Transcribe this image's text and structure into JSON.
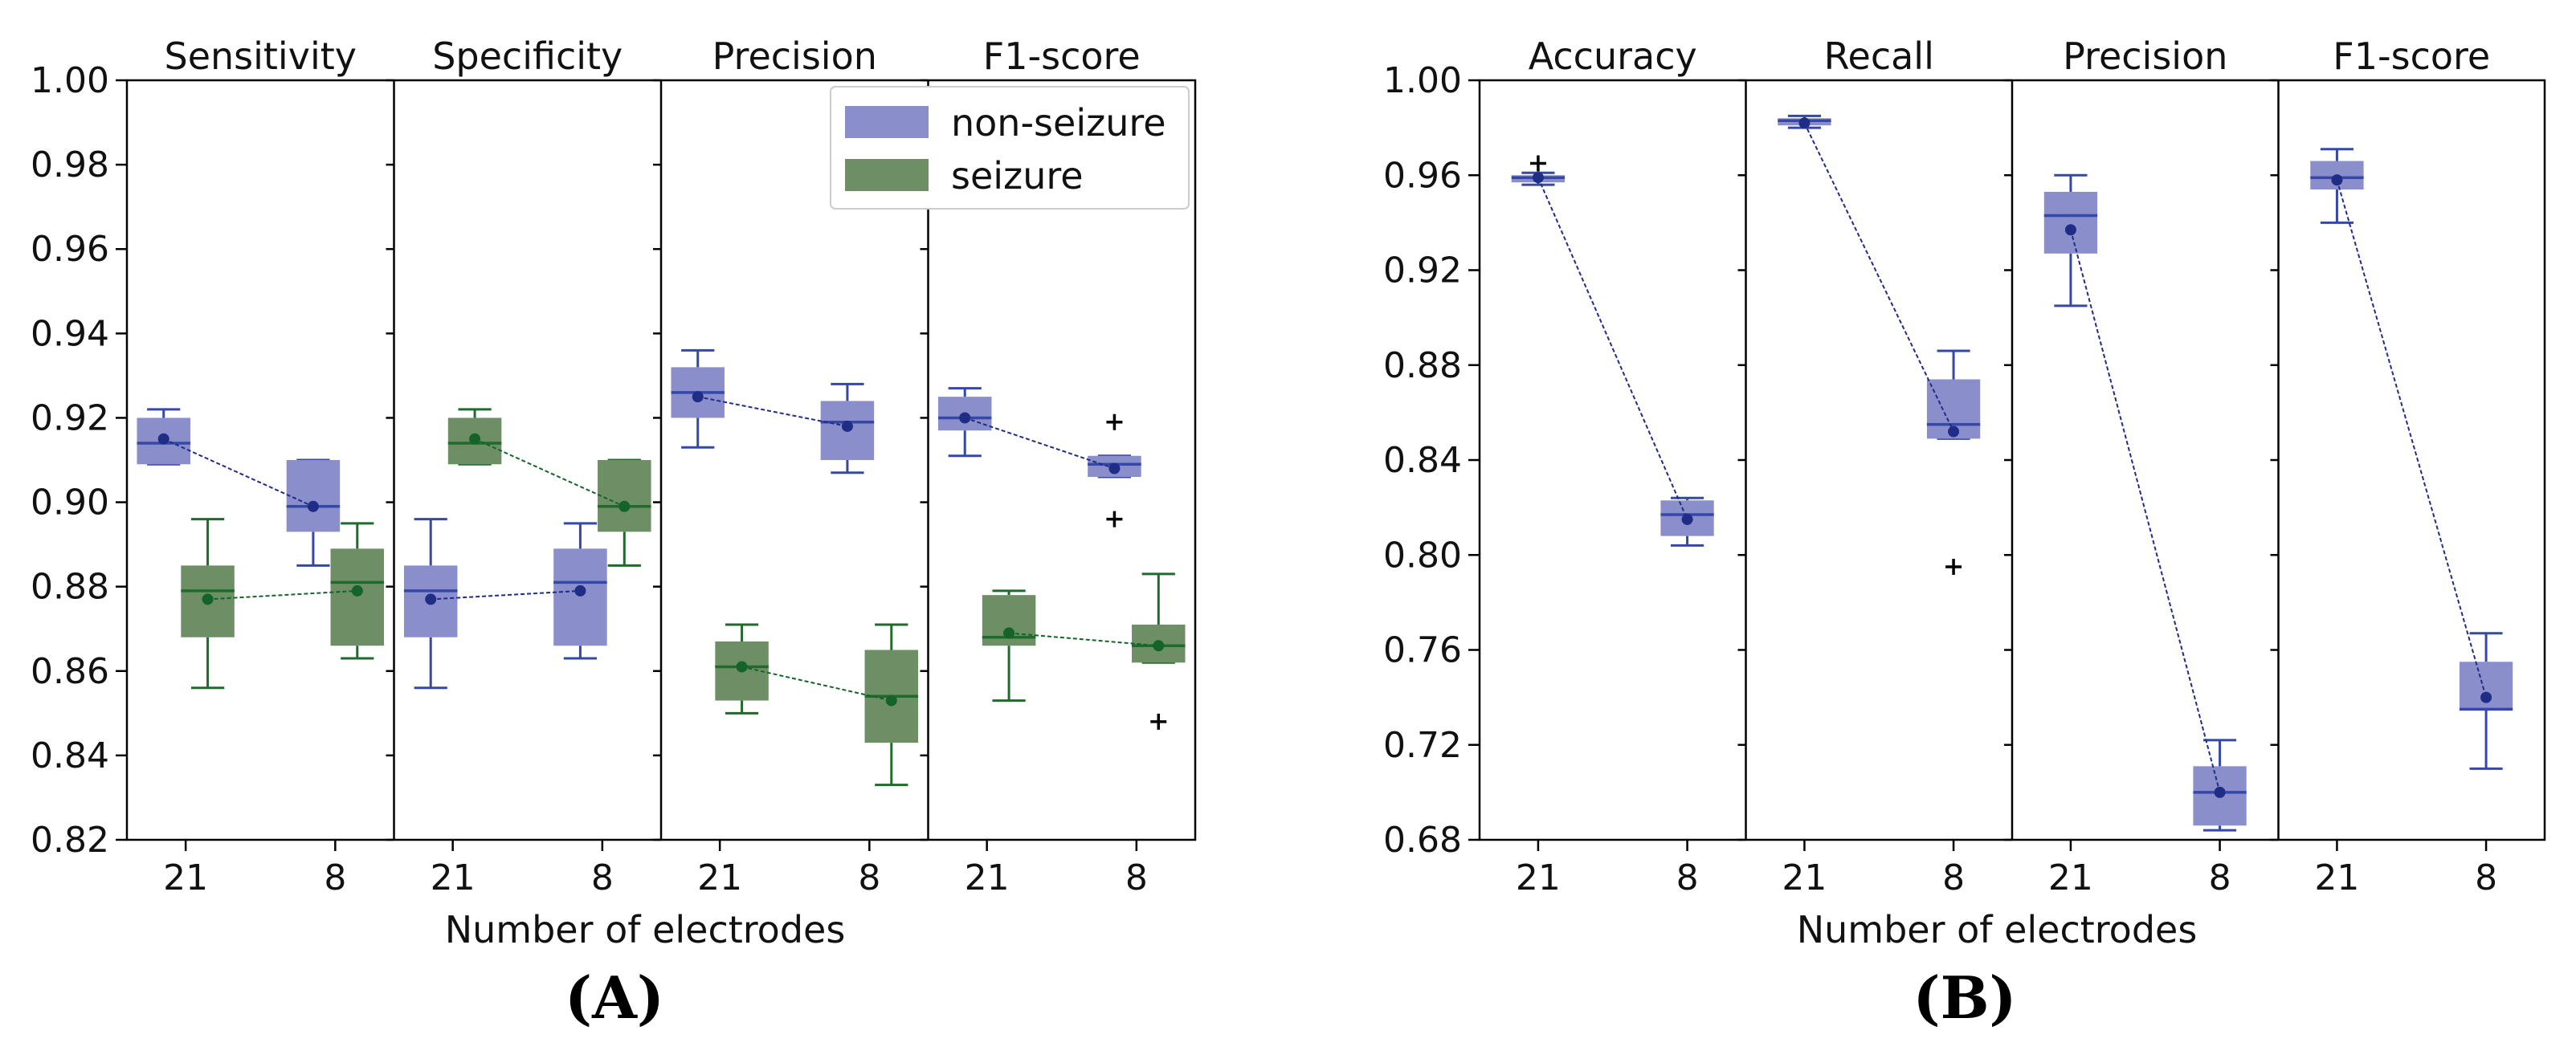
{
  "panel_labels": {
    "A": "(A)",
    "B": "(B)"
  },
  "chart_data": [
    {
      "type": "box",
      "panel": "(A)",
      "xlabel": "Number of electrodes",
      "ylabel": "",
      "ylim": [
        0.82,
        1.0
      ],
      "yticks": [
        "0.82",
        "0.84",
        "0.86",
        "0.88",
        "0.90",
        "0.92",
        "0.94",
        "0.96",
        "0.98",
        "1.00"
      ],
      "categories": [
        "21",
        "8"
      ],
      "legend": {
        "position": "top-right",
        "entries": [
          {
            "name": "non-seizure",
            "color": "#8a8fcc"
          },
          {
            "name": "seizure",
            "color": "#6e8f66"
          }
        ]
      },
      "colors": {
        "non-seizure": {
          "fill": "#8a8fcc",
          "edge": "#3548a8",
          "mean": "#1f2d86"
        },
        "seizure": {
          "fill": "#6e8f66",
          "edge": "#1e6b2c",
          "mean": "#14632a"
        }
      },
      "subplots": [
        {
          "title": "Sensitivity",
          "series": [
            {
              "name": "non-seizure",
              "boxes": [
                {
                  "category": "21",
                  "whislo": 0.909,
                  "q1": 0.909,
                  "med": 0.914,
                  "q3": 0.92,
                  "whishi": 0.922,
                  "mean": 0.915,
                  "fliers": []
                },
                {
                  "category": "8",
                  "whislo": 0.885,
                  "q1": 0.893,
                  "med": 0.899,
                  "q3": 0.91,
                  "whishi": 0.91,
                  "mean": 0.899,
                  "fliers": []
                }
              ]
            },
            {
              "name": "seizure",
              "boxes": [
                {
                  "category": "21",
                  "whislo": 0.856,
                  "q1": 0.868,
                  "med": 0.879,
                  "q3": 0.885,
                  "whishi": 0.896,
                  "mean": 0.877,
                  "fliers": []
                },
                {
                  "category": "8",
                  "whislo": 0.863,
                  "q1": 0.866,
                  "med": 0.881,
                  "q3": 0.889,
                  "whishi": 0.895,
                  "mean": 0.879,
                  "fliers": []
                }
              ]
            }
          ]
        },
        {
          "title": "Specificity",
          "series": [
            {
              "name": "non-seizure",
              "boxes": [
                {
                  "category": "21",
                  "whislo": 0.856,
                  "q1": 0.868,
                  "med": 0.879,
                  "q3": 0.885,
                  "whishi": 0.896,
                  "mean": 0.877,
                  "fliers": []
                },
                {
                  "category": "8",
                  "whislo": 0.863,
                  "q1": 0.866,
                  "med": 0.881,
                  "q3": 0.889,
                  "whishi": 0.895,
                  "mean": 0.879,
                  "fliers": []
                }
              ]
            },
            {
              "name": "seizure",
              "boxes": [
                {
                  "category": "21",
                  "whislo": 0.909,
                  "q1": 0.909,
                  "med": 0.914,
                  "q3": 0.92,
                  "whishi": 0.922,
                  "mean": 0.915,
                  "fliers": []
                },
                {
                  "category": "8",
                  "whislo": 0.885,
                  "q1": 0.893,
                  "med": 0.899,
                  "q3": 0.91,
                  "whishi": 0.91,
                  "mean": 0.899,
                  "fliers": []
                }
              ]
            }
          ]
        },
        {
          "title": "Precision",
          "series": [
            {
              "name": "non-seizure",
              "boxes": [
                {
                  "category": "21",
                  "whislo": 0.913,
                  "q1": 0.92,
                  "med": 0.926,
                  "q3": 0.932,
                  "whishi": 0.936,
                  "mean": 0.925,
                  "fliers": []
                },
                {
                  "category": "8",
                  "whislo": 0.907,
                  "q1": 0.91,
                  "med": 0.919,
                  "q3": 0.924,
                  "whishi": 0.928,
                  "mean": 0.918,
                  "fliers": []
                }
              ]
            },
            {
              "name": "seizure",
              "boxes": [
                {
                  "category": "21",
                  "whislo": 0.85,
                  "q1": 0.853,
                  "med": 0.861,
                  "q3": 0.867,
                  "whishi": 0.871,
                  "mean": 0.861,
                  "fliers": []
                },
                {
                  "category": "8",
                  "whislo": 0.833,
                  "q1": 0.843,
                  "med": 0.854,
                  "q3": 0.865,
                  "whishi": 0.871,
                  "mean": 0.853,
                  "fliers": []
                }
              ]
            }
          ]
        },
        {
          "title": "F1-score",
          "series": [
            {
              "name": "non-seizure",
              "boxes": [
                {
                  "category": "21",
                  "whislo": 0.911,
                  "q1": 0.917,
                  "med": 0.92,
                  "q3": 0.925,
                  "whishi": 0.927,
                  "mean": 0.92,
                  "fliers": []
                },
                {
                  "category": "8",
                  "whislo": 0.906,
                  "q1": 0.906,
                  "med": 0.909,
                  "q3": 0.911,
                  "whishi": 0.911,
                  "mean": 0.908,
                  "fliers": [
                    0.919,
                    0.896
                  ]
                }
              ]
            },
            {
              "name": "seizure",
              "boxes": [
                {
                  "category": "21",
                  "whislo": 0.853,
                  "q1": 0.866,
                  "med": 0.868,
                  "q3": 0.878,
                  "whishi": 0.879,
                  "mean": 0.869,
                  "fliers": []
                },
                {
                  "category": "8",
                  "whislo": 0.862,
                  "q1": 0.862,
                  "med": 0.866,
                  "q3": 0.871,
                  "whishi": 0.883,
                  "mean": 0.866,
                  "fliers": [
                    0.848
                  ]
                }
              ]
            }
          ]
        }
      ]
    },
    {
      "type": "box",
      "panel": "(B)",
      "xlabel": "Number of electrodes",
      "ylabel": "",
      "ylim": [
        0.68,
        1.0
      ],
      "yticks": [
        "0.68",
        "0.72",
        "0.76",
        "0.80",
        "0.84",
        "0.88",
        "0.92",
        "0.96",
        "1.00"
      ],
      "categories": [
        "21",
        "8"
      ],
      "colors": {
        "overall": {
          "fill": "#8a8fcc",
          "edge": "#3548a8",
          "mean": "#1f2d86"
        }
      },
      "subplots": [
        {
          "title": "Accuracy",
          "series": [
            {
              "name": "overall",
              "boxes": [
                {
                  "category": "21",
                  "whislo": 0.956,
                  "q1": 0.957,
                  "med": 0.959,
                  "q3": 0.96,
                  "whishi": 0.961,
                  "mean": 0.959,
                  "fliers": [
                    0.965
                  ]
                },
                {
                  "category": "8",
                  "whislo": 0.804,
                  "q1": 0.808,
                  "med": 0.817,
                  "q3": 0.823,
                  "whishi": 0.824,
                  "mean": 0.815,
                  "fliers": []
                }
              ]
            }
          ]
        },
        {
          "title": "Recall",
          "series": [
            {
              "name": "overall",
              "boxes": [
                {
                  "category": "21",
                  "whislo": 0.98,
                  "q1": 0.981,
                  "med": 0.983,
                  "q3": 0.984,
                  "whishi": 0.985,
                  "mean": 0.982,
                  "fliers": []
                },
                {
                  "category": "8",
                  "whislo": 0.849,
                  "q1": 0.849,
                  "med": 0.855,
                  "q3": 0.874,
                  "whishi": 0.886,
                  "mean": 0.852,
                  "fliers": [
                    0.795
                  ]
                }
              ]
            }
          ]
        },
        {
          "title": "Precision",
          "series": [
            {
              "name": "overall",
              "boxes": [
                {
                  "category": "21",
                  "whislo": 0.905,
                  "q1": 0.927,
                  "med": 0.943,
                  "q3": 0.953,
                  "whishi": 0.96,
                  "mean": 0.937,
                  "fliers": []
                },
                {
                  "category": "8",
                  "whislo": 0.684,
                  "q1": 0.686,
                  "med": 0.7,
                  "q3": 0.711,
                  "whishi": 0.722,
                  "mean": 0.7,
                  "fliers": []
                }
              ]
            }
          ]
        },
        {
          "title": "F1-score",
          "series": [
            {
              "name": "overall",
              "boxes": [
                {
                  "category": "21",
                  "whislo": 0.94,
                  "q1": 0.954,
                  "med": 0.959,
                  "q3": 0.966,
                  "whishi": 0.971,
                  "mean": 0.958,
                  "fliers": []
                },
                {
                  "category": "8",
                  "whislo": 0.71,
                  "q1": 0.735,
                  "med": 0.735,
                  "q3": 0.755,
                  "whishi": 0.767,
                  "mean": 0.74,
                  "fliers": []
                }
              ]
            }
          ]
        }
      ]
    }
  ]
}
